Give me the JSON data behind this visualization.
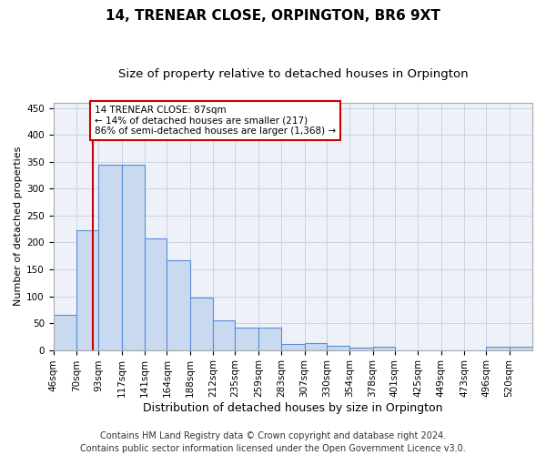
{
  "title": "14, TRENEAR CLOSE, ORPINGTON, BR6 9XT",
  "subtitle": "Size of property relative to detached houses in Orpington",
  "xlabel": "Distribution of detached houses by size in Orpington",
  "ylabel": "Number of detached properties",
  "bar_labels": [
    "46sqm",
    "70sqm",
    "93sqm",
    "117sqm",
    "141sqm",
    "164sqm",
    "188sqm",
    "212sqm",
    "235sqm",
    "259sqm",
    "283sqm",
    "307sqm",
    "330sqm",
    "354sqm",
    "378sqm",
    "401sqm",
    "425sqm",
    "449sqm",
    "473sqm",
    "496sqm",
    "520sqm"
  ],
  "bar_values": [
    65,
    222,
    345,
    345,
    208,
    167,
    97,
    56,
    42,
    42,
    12,
    13,
    7,
    4,
    6,
    0,
    0,
    0,
    0,
    6,
    6
  ],
  "bar_color": "#c9d9f0",
  "bar_edge_color": "#5b8dd9",
  "property_line_x": 87,
  "bin_edges": [
    46,
    70,
    93,
    117,
    141,
    164,
    188,
    212,
    235,
    259,
    283,
    307,
    330,
    354,
    378,
    401,
    425,
    449,
    473,
    496,
    520,
    544
  ],
  "annotation_text": "14 TRENEAR CLOSE: 87sqm\n← 14% of detached houses are smaller (217)\n86% of semi-detached houses are larger (1,368) →",
  "annotation_box_color": "#ffffff",
  "annotation_box_edge": "#cc0000",
  "red_line_color": "#cc0000",
  "ylim": [
    0,
    460
  ],
  "yticks": [
    0,
    50,
    100,
    150,
    200,
    250,
    300,
    350,
    400,
    450
  ],
  "grid_color": "#c8d4e8",
  "background_color": "#eef2f8",
  "footer_line1": "Contains HM Land Registry data © Crown copyright and database right 2024.",
  "footer_line2": "Contains public sector information licensed under the Open Government Licence v3.0.",
  "title_fontsize": 11,
  "subtitle_fontsize": 9.5,
  "xlabel_fontsize": 9,
  "ylabel_fontsize": 8,
  "tick_fontsize": 7.5,
  "annotation_fontsize": 7.5,
  "footer_fontsize": 7
}
